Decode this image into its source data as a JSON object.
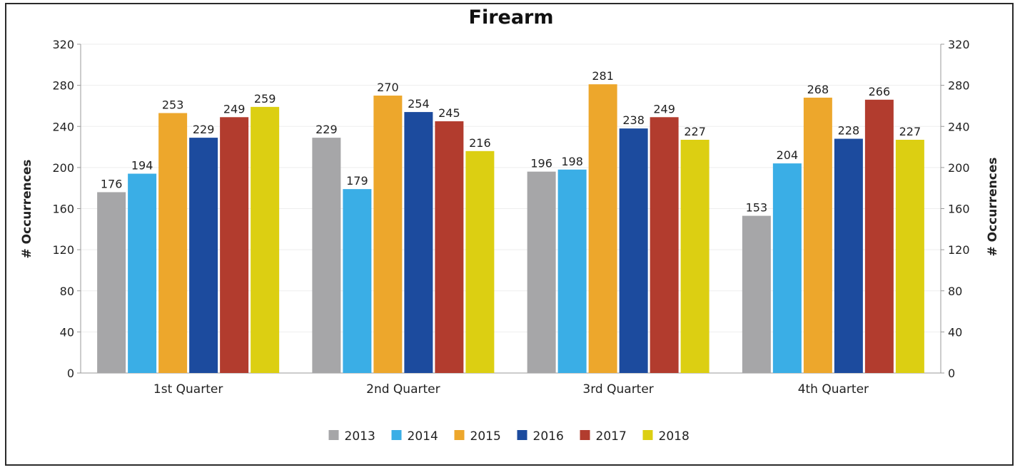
{
  "chart_data": {
    "type": "bar",
    "title": "Firearm",
    "ylabel": "# Occurrences",
    "y2label": "# Occurrences",
    "ylim": [
      0,
      320
    ],
    "yticks": [
      0,
      40,
      80,
      120,
      160,
      200,
      240,
      280,
      320
    ],
    "categories": [
      "1st Quarter",
      "2nd Quarter",
      "3rd Quarter",
      "4th Quarter"
    ],
    "series": [
      {
        "name": "2013",
        "color": "#a6a6a8",
        "values": [
          176,
          229,
          196,
          153
        ]
      },
      {
        "name": "2014",
        "color": "#3aaee6",
        "values": [
          194,
          179,
          198,
          204
        ]
      },
      {
        "name": "2015",
        "color": "#eda72c",
        "values": [
          253,
          270,
          281,
          268
        ]
      },
      {
        "name": "2016",
        "color": "#1c4b9e",
        "values": [
          229,
          254,
          238,
          228
        ]
      },
      {
        "name": "2017",
        "color": "#b23c2e",
        "values": [
          249,
          245,
          249,
          266
        ]
      },
      {
        "name": "2018",
        "color": "#dccf12",
        "values": [
          259,
          216,
          227,
          227
        ]
      }
    ],
    "grid": true,
    "legend": "bottom"
  }
}
